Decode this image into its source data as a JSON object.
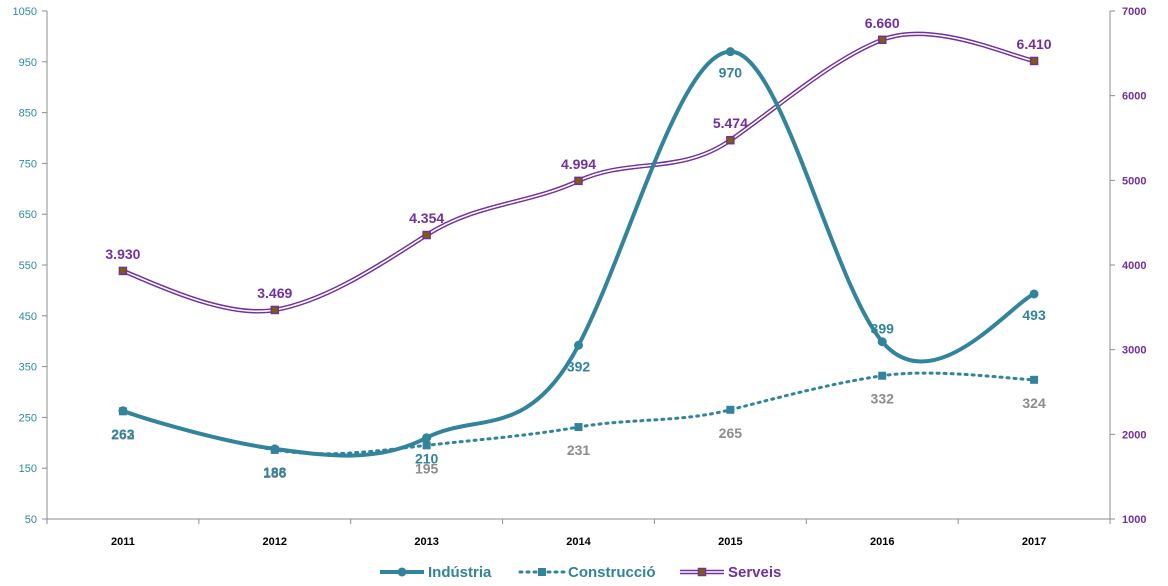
{
  "chart_data": {
    "type": "line",
    "categories": [
      "2011",
      "2012",
      "2013",
      "2014",
      "2015",
      "2016",
      "2017"
    ],
    "y_left": {
      "ylim": [
        50,
        1050
      ],
      "ticks": [
        50,
        150,
        250,
        350,
        450,
        550,
        650,
        750,
        850,
        950,
        1050
      ]
    },
    "y_right": {
      "ylim": [
        1000,
        7000
      ],
      "ticks": [
        1000,
        2000,
        3000,
        4000,
        5000,
        6000,
        7000
      ]
    },
    "series": [
      {
        "name": "Indústria",
        "axis": "left",
        "values": [
          263,
          188,
          210,
          392,
          970,
          399,
          493
        ],
        "labels": [
          "263",
          "188",
          "210",
          "392",
          "970",
          "399",
          "493"
        ],
        "color": "#31849b",
        "style": "solid-circle"
      },
      {
        "name": "Construcció",
        "axis": "left",
        "values": [
          262,
          186,
          195,
          231,
          265,
          332,
          324
        ],
        "labels": [
          "262",
          "186",
          "195",
          "231",
          "265",
          "332",
          "324"
        ],
        "color": "#31849b",
        "label_color": "#8c8c8c",
        "style": "dotted-square"
      },
      {
        "name": "Serveis",
        "axis": "right",
        "values": [
          3930,
          3469,
          4354,
          4994,
          5474,
          6660,
          6410
        ],
        "labels": [
          "3.930",
          "3.469",
          "4.354",
          "4.994",
          "5.474",
          "6.660",
          "6.410"
        ],
        "color": "#7030a0",
        "style": "double-square"
      }
    ],
    "grid": false,
    "legend": "bottom"
  }
}
